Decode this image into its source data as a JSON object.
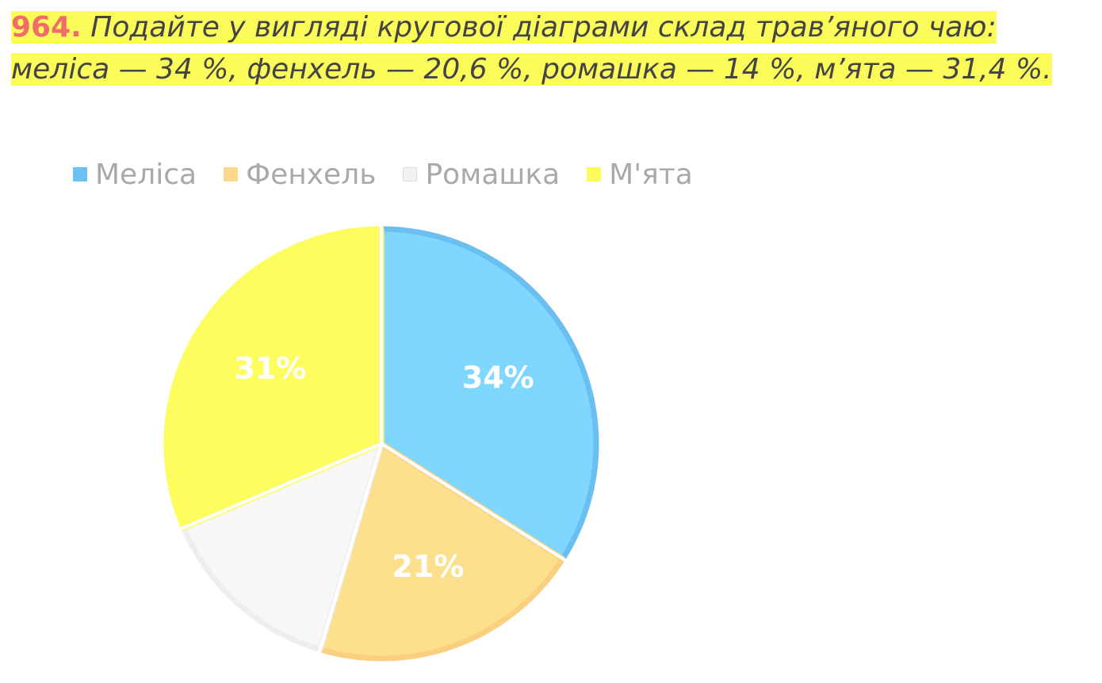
{
  "task": {
    "number": "964.",
    "text": "Подайте у вигляді кругової діаграми склад трав’яного чаю: меліса — 34 %, фенхель — 20,6 %, ромашка — 14 %, м’ята — 31,4 %."
  },
  "legend": [
    {
      "label": "Меліса",
      "color": "#6bc2f2"
    },
    {
      "label": "Фенхель",
      "color": "#fdd78c"
    },
    {
      "label": "Ромашка",
      "color": "#f2f2f2"
    },
    {
      "label": "М'ята",
      "color": "#fbfb5a"
    }
  ],
  "chart_data": {
    "type": "pie",
    "title": "",
    "categories": [
      "Меліса",
      "Фенхель",
      "Ромашка",
      "М'ята"
    ],
    "values": [
      34,
      20.6,
      14,
      31.4
    ],
    "data_labels": [
      "34%",
      "21%",
      "",
      "31%"
    ],
    "colors": [
      "#7fd7ff",
      "#fde08e",
      "#f7f7f7",
      "#fdfd60"
    ],
    "edge_colors": [
      "#6bbef0",
      "#fbcf80",
      "#eeeeee",
      "#fdfd60"
    ],
    "label_color": "#ffffff",
    "legend_position": "top-left"
  }
}
